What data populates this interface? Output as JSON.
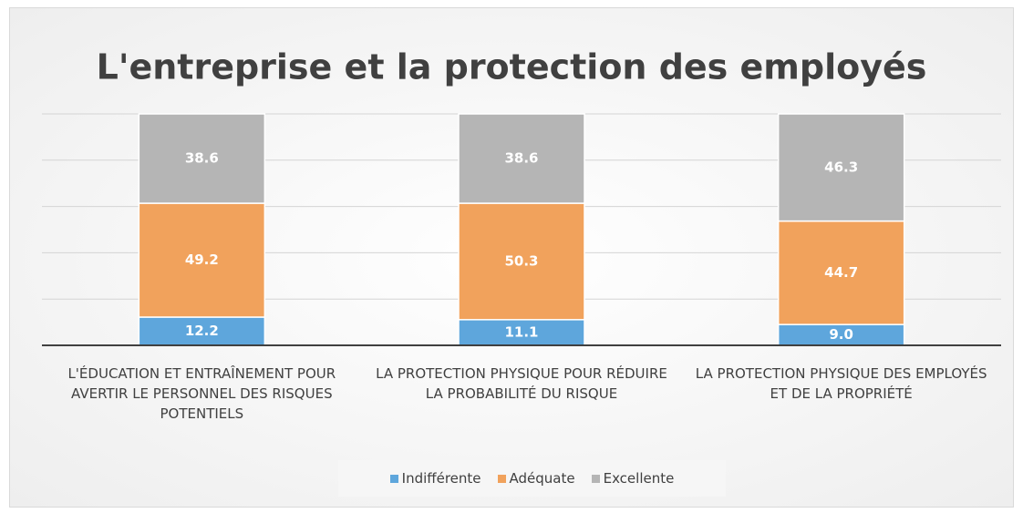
{
  "chart_data": {
    "type": "stacked_bar",
    "title": "L'entreprise et la protection des employés",
    "categories": [
      "L'ÉDUCATION ET ENTRAÎNEMENT POUR AVERTIR LE PERSONNEL DES RISQUES POTENTIELS",
      "LA PROTECTION PHYSIQUE POUR RÉDUIRE LA PROBABILITÉ DU RISQUE",
      "LA PROTECTION PHYSIQUE DES EMPLOYÉS ET DE LA PROPRIÉTÉ"
    ],
    "series": [
      {
        "name": "Indifférente",
        "color": "#5ea6dc",
        "values": [
          12.2,
          11.1,
          9
        ],
        "value_labels": [
          "12.2",
          "11.1",
          "9.0"
        ]
      },
      {
        "name": "Adéquate",
        "color": "#f1a25c",
        "values": [
          49.2,
          50.3,
          44.7
        ],
        "value_labels": [
          "49.2",
          "50.3",
          "44.7"
        ]
      },
      {
        "name": "Excellente",
        "color": "#b5b5b5",
        "values": [
          38.6,
          38.6,
          46.3
        ],
        "value_labels": [
          "38.6",
          "38.6",
          "46.3"
        ]
      }
    ],
    "ylim": [
      0,
      100
    ],
    "yticks": [
      0,
      20,
      40,
      60,
      80,
      100
    ],
    "grid": true,
    "legend": "bottom"
  }
}
